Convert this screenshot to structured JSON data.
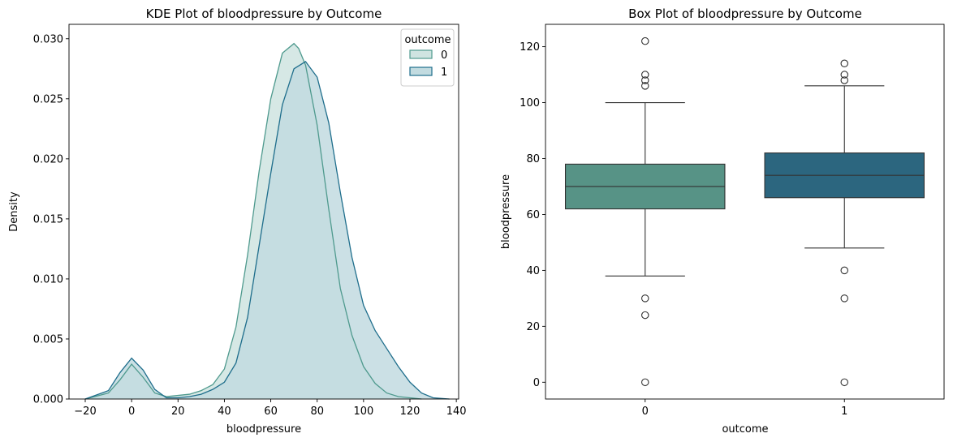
{
  "chart_data": [
    {
      "type": "area",
      "title": "KDE Plot of bloodpressure by Outcome",
      "xlabel": "bloodpressure",
      "ylabel": "Density",
      "xlim": [
        -27,
        141
      ],
      "ylim": [
        0,
        0.0312
      ],
      "xticks": [
        -20,
        0,
        20,
        40,
        60,
        80,
        100,
        120,
        140
      ],
      "yticks": [
        0.0,
        0.005,
        0.01,
        0.015,
        0.02,
        0.025,
        0.03
      ],
      "legend": {
        "title": "outcome",
        "position": "top-right"
      },
      "series": [
        {
          "name": "0",
          "stroke": "#4f9a8e",
          "fill": "#cfe4e1",
          "x": [
            -20,
            -10,
            -5,
            0,
            5,
            10,
            15,
            20,
            25,
            30,
            35,
            40,
            45,
            50,
            55,
            60,
            65,
            70,
            72,
            75,
            80,
            85,
            90,
            95,
            100,
            105,
            110,
            115,
            120,
            125
          ],
          "y": [
            0.0,
            0.0005,
            0.0016,
            0.0029,
            0.0018,
            0.0005,
            0.0002,
            0.0003,
            0.0004,
            0.0007,
            0.0012,
            0.0025,
            0.006,
            0.012,
            0.019,
            0.025,
            0.0288,
            0.0296,
            0.0292,
            0.0278,
            0.0228,
            0.0158,
            0.0092,
            0.0053,
            0.0027,
            0.0013,
            0.0005,
            0.0002,
            0.0001,
            0.0
          ]
        },
        {
          "name": "1",
          "stroke": "#1f6e8c",
          "fill": "#c2dbe0",
          "x": [
            -20,
            -10,
            -5,
            0,
            5,
            10,
            15,
            20,
            25,
            30,
            35,
            40,
            45,
            50,
            55,
            60,
            65,
            70,
            75,
            80,
            85,
            90,
            95,
            100,
            105,
            110,
            115,
            120,
            125,
            130,
            137
          ],
          "y": [
            0.0,
            0.0007,
            0.0022,
            0.0034,
            0.0024,
            0.0008,
            0.0001,
            0.0001,
            0.0002,
            0.0004,
            0.0008,
            0.0014,
            0.003,
            0.0068,
            0.0128,
            0.0188,
            0.0245,
            0.0275,
            0.0281,
            0.0268,
            0.023,
            0.0172,
            0.0118,
            0.0078,
            0.0057,
            0.0042,
            0.0027,
            0.0014,
            0.0005,
            0.0001,
            0.0
          ]
        }
      ]
    },
    {
      "type": "box",
      "title": "Box Plot of bloodpressure by Outcome",
      "xlabel": "outcome",
      "ylabel": "bloodpressure",
      "categories": [
        "0",
        "1"
      ],
      "ylim": [
        -6,
        128
      ],
      "yticks": [
        0,
        20,
        40,
        60,
        80,
        100,
        120
      ],
      "boxes": [
        {
          "category": "0",
          "color": "#579386",
          "whisker_low": 38,
          "q1": 62,
          "median": 70,
          "q3": 78,
          "whisker_high": 100,
          "outliers": [
            122,
            110,
            108,
            106,
            30,
            24,
            0
          ]
        },
        {
          "category": "1",
          "color": "#2c667f",
          "whisker_low": 48,
          "q1": 66,
          "median": 74,
          "q3": 82,
          "whisker_high": 106,
          "outliers": [
            114,
            110,
            108,
            40,
            30,
            0
          ]
        }
      ]
    }
  ]
}
